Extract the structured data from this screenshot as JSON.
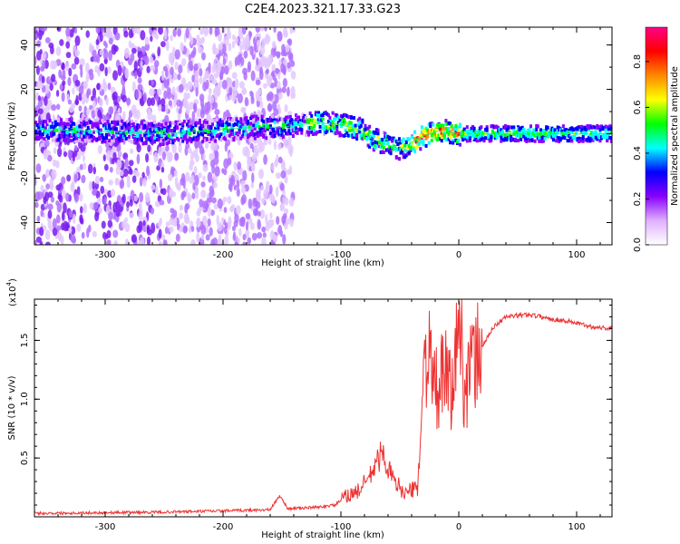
{
  "title": "C2E4.2023.321.17.33.G23",
  "chart_data": [
    {
      "type": "heatmap",
      "xlabel": "Height of straight line (km)",
      "ylabel": "Frequency (Hz)",
      "xlim": [
        -360,
        130
      ],
      "ylim": [
        -50,
        48
      ],
      "x_ticks": [
        -300,
        -200,
        -100,
        0,
        100
      ],
      "y_ticks": [
        -40,
        -20,
        0,
        20,
        40
      ],
      "colorbar": {
        "label": "Normalized spectral amplitude",
        "range": [
          0,
          0.95
        ],
        "ticks": [
          0.0,
          0.2,
          0.4,
          0.6,
          0.8
        ],
        "colors": [
          "#ffffff",
          "#e0b0ff",
          "#8800ff",
          "#0000ff",
          "#00ffff",
          "#00ff00",
          "#ffff00",
          "#ff8800",
          "#ff0000",
          "#ff0088"
        ]
      },
      "frequency_track": [
        {
          "x": -360,
          "y": 2
        },
        {
          "x": -300,
          "y": 1
        },
        {
          "x": -250,
          "y": 0
        },
        {
          "x": -200,
          "y": 2
        },
        {
          "x": -170,
          "y": 3
        },
        {
          "x": -150,
          "y": 3
        },
        {
          "x": -120,
          "y": 5
        },
        {
          "x": -100,
          "y": 4
        },
        {
          "x": -85,
          "y": 2
        },
        {
          "x": -75,
          "y": -2
        },
        {
          "x": -60,
          "y": -5
        },
        {
          "x": -50,
          "y": -7
        },
        {
          "x": -40,
          "y": -4
        },
        {
          "x": -30,
          "y": -1
        },
        {
          "x": -20,
          "y": 1
        },
        {
          "x": -10,
          "y": 1
        },
        {
          "x": 0,
          "y": 0
        },
        {
          "x": 50,
          "y": 0
        },
        {
          "x": 100,
          "y": 0
        },
        {
          "x": 130,
          "y": 0
        }
      ]
    },
    {
      "type": "line",
      "xlabel": "Height of straight line (km)",
      "ylabel": "SNR (10 * v/v)",
      "scale_label": "(x10",
      "scale_exp": "4",
      "scale_close": ")",
      "xlim": [
        -360,
        130
      ],
      "ylim": [
        0,
        1.85
      ],
      "x_ticks": [
        -300,
        -200,
        -100,
        0,
        100
      ],
      "y_ticks": [
        0.5,
        1.0,
        1.5
      ],
      "series": [
        {
          "color": "#ee3333",
          "points": [
            {
              "x": -360,
              "y": 0.03
            },
            {
              "x": -300,
              "y": 0.035
            },
            {
              "x": -250,
              "y": 0.04
            },
            {
              "x": -200,
              "y": 0.05
            },
            {
              "x": -160,
              "y": 0.06
            },
            {
              "x": -152,
              "y": 0.18
            },
            {
              "x": -145,
              "y": 0.07
            },
            {
              "x": -120,
              "y": 0.08
            },
            {
              "x": -105,
              "y": 0.1
            },
            {
              "x": -95,
              "y": 0.18
            },
            {
              "x": -85,
              "y": 0.22
            },
            {
              "x": -75,
              "y": 0.35
            },
            {
              "x": -65,
              "y": 0.55
            },
            {
              "x": -60,
              "y": 0.42
            },
            {
              "x": -55,
              "y": 0.3
            },
            {
              "x": -45,
              "y": 0.2
            },
            {
              "x": -35,
              "y": 0.25
            },
            {
              "x": -28,
              "y": 1.45
            },
            {
              "x": -20,
              "y": 1.05
            },
            {
              "x": -12,
              "y": 1.2
            },
            {
              "x": -5,
              "y": 1.05
            },
            {
              "x": 0,
              "y": 1.7
            },
            {
              "x": 5,
              "y": 1.1
            },
            {
              "x": 10,
              "y": 1.25
            },
            {
              "x": 20,
              "y": 1.45
            },
            {
              "x": 30,
              "y": 1.62
            },
            {
              "x": 40,
              "y": 1.7
            },
            {
              "x": 60,
              "y": 1.72
            },
            {
              "x": 80,
              "y": 1.68
            },
            {
              "x": 95,
              "y": 1.66
            },
            {
              "x": 110,
              "y": 1.62
            },
            {
              "x": 130,
              "y": 1.6
            }
          ]
        }
      ]
    }
  ]
}
